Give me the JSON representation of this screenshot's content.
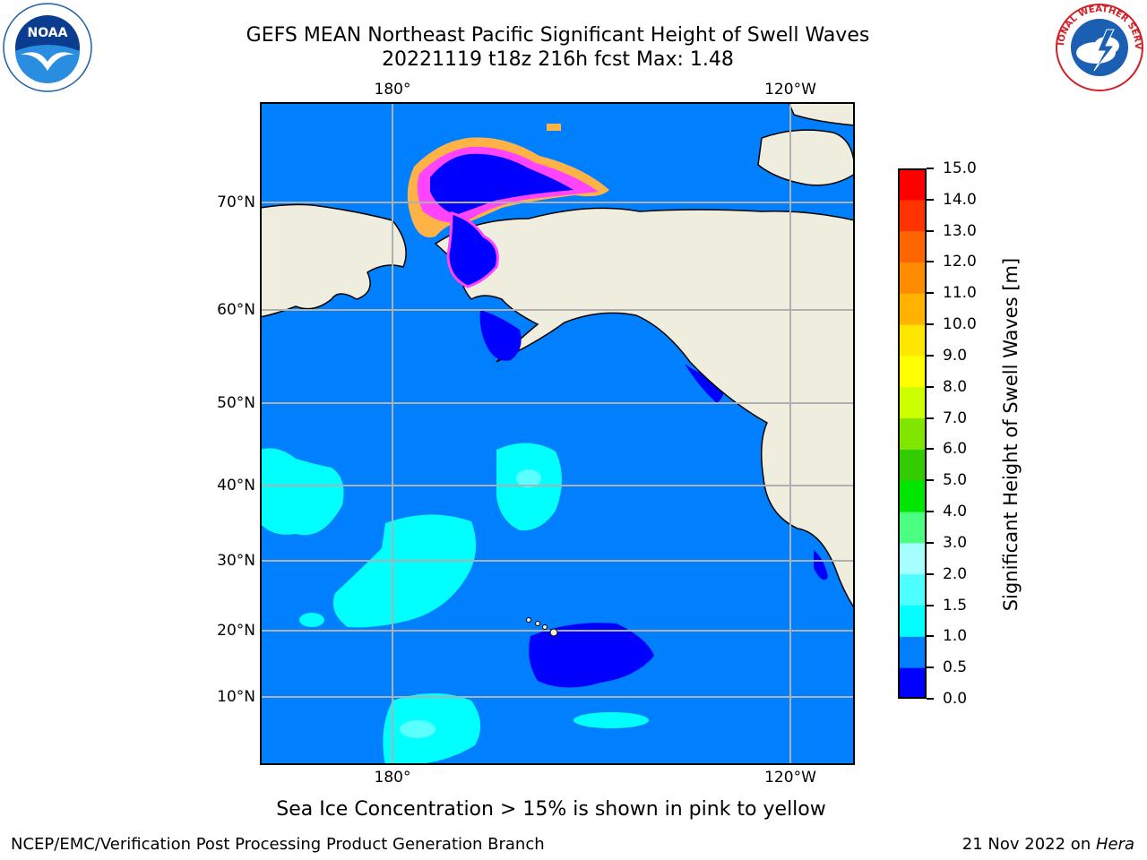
{
  "title": {
    "line1": "GEFS MEAN Northeast Pacific Significant Height of Swell Waves",
    "line2": "20221119 t18z 216h fcst   Max: 1.48"
  },
  "logos": {
    "left": "NOAA",
    "right": "NATIONAL WEATHER SERVICE"
  },
  "map": {
    "lon_labels": [
      "180°",
      "120°W"
    ],
    "lat_labels": [
      "70°N",
      "60°N",
      "50°N",
      "40°N",
      "30°N",
      "20°N",
      "10°N"
    ],
    "colors": {
      "ocean": "#0080ff",
      "land": "#efedde",
      "low_swell": "#0000ff",
      "swell_1_1_5": "#00ffff",
      "swell_1_5_2": "#66ffff",
      "ice_inner": "#ff44ff",
      "ice_outer": "#ffb347",
      "grid": "#b0b0b0"
    }
  },
  "colorbar": {
    "label": "Significant Height of Swell Waves [m]",
    "ticks": [
      "15.0",
      "14.0",
      "13.0",
      "12.0",
      "11.0",
      "10.0",
      "9.0",
      "8.0",
      "7.0",
      "6.0",
      "5.0",
      "4.0",
      "3.0",
      "2.0",
      "1.5",
      "1.0",
      "0.5",
      "0.0"
    ],
    "colors": [
      "#0000ff",
      "#0080ff",
      "#00ffff",
      "#4dffff",
      "#a6ffff",
      "#4dff80",
      "#00e600",
      "#33cc00",
      "#80e600",
      "#ccff00",
      "#ffff00",
      "#ffe600",
      "#ffb300",
      "#ff8c00",
      "#ff6600",
      "#ff3300",
      "#ff0000"
    ]
  },
  "caption": "Sea Ice Concentration > 15% is shown in pink to yellow",
  "footer": {
    "left": "NCEP/EMC/Verification Post Processing Product Generation Branch",
    "right_prefix": "21 Nov 2022 on ",
    "right_host": "Hera"
  }
}
